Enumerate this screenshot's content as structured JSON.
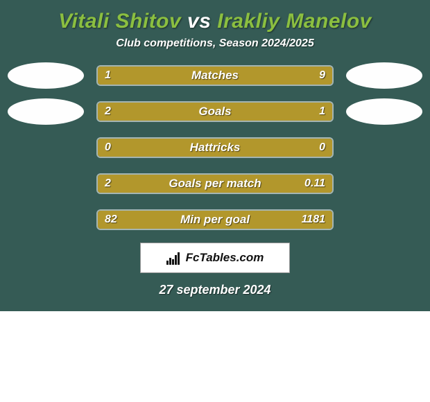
{
  "title": {
    "player1": "Vitali Shitov",
    "vs": "vs",
    "player2": "Irakliy Manelov",
    "player1_color": "#8bbf40",
    "vs_color": "#ffffff",
    "player2_color": "#8bbf40"
  },
  "subtitle": "Club competitions, Season 2024/2025",
  "card_bg": "#355b55",
  "bar_border_color": "rgba(255,255,255,0.55)",
  "left_color": "#b2972c",
  "right_color": "#b2972c",
  "avatars": {
    "row1_left_visible": true,
    "row1_right_visible": true,
    "row2_left_visible": true,
    "row2_right_visible": true
  },
  "avatar_bg": "#fefefe",
  "metrics": [
    {
      "label": "Matches",
      "left_val": "1",
      "right_val": "9",
      "left_pct": 18,
      "right_pct": 82
    },
    {
      "label": "Goals",
      "left_val": "2",
      "right_val": "1",
      "left_pct": 90,
      "right_pct": 10
    },
    {
      "label": "Hattricks",
      "left_val": "0",
      "right_val": "0",
      "left_pct": 100,
      "right_pct": 0
    },
    {
      "label": "Goals per match",
      "left_val": "2",
      "right_val": "0.11",
      "left_pct": 85,
      "right_pct": 15
    },
    {
      "label": "Min per goal",
      "left_val": "82",
      "right_val": "1181",
      "left_pct": 100,
      "right_pct": 0
    }
  ],
  "brand": "FcTables.com",
  "date": "27 september 2024"
}
